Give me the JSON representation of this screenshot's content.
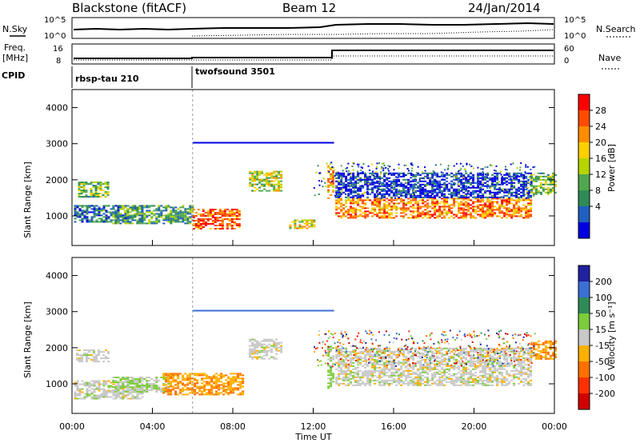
{
  "header": {
    "radar": "Blackstone (fitACF)",
    "beam": "Beam 12",
    "date": "24/Jan/2014"
  },
  "noise_panel": {
    "left_label": "N.Sky",
    "left_ticks": [
      "10^5",
      "10^0"
    ],
    "right_label": "N.Search",
    "right_ticks": [
      "10^5",
      "10^0"
    ]
  },
  "freq_panel": {
    "left_label_1": "Freq.",
    "left_label_2": "[MHz]",
    "left_ticks": [
      "16",
      "8"
    ],
    "right_label": "Nave",
    "right_ticks": [
      "60",
      "0"
    ]
  },
  "cpid_panel": {
    "label": "CPID",
    "modes": [
      {
        "name": "rbsp-tau 210",
        "start_hour": 0
      },
      {
        "name": "twofsound 3501",
        "start_hour": 6
      }
    ]
  },
  "x_axis": {
    "label": "Time UT",
    "ticks": [
      "00:00",
      "04:00",
      "08:00",
      "12:00",
      "16:00",
      "20:00",
      "00:00"
    ]
  },
  "chart_data": [
    {
      "type": "heatmap",
      "title": "",
      "xlabel": "Time UT",
      "ylabel": "Slant Range [km]",
      "xlim": [
        0,
        24
      ],
      "ylim": [
        180,
        4500
      ],
      "yticks": [
        "1000",
        "2000",
        "3000",
        "4000"
      ],
      "colorbar": {
        "label": "Power [dB]",
        "ticks": [
          "28",
          "24",
          "20",
          "16",
          "12",
          "8",
          "4"
        ],
        "colors": [
          "#ff0000",
          "#ff4a00",
          "#ff8c00",
          "#ffd000",
          "#b5d400",
          "#4fa84f",
          "#2e8b57",
          "#1f5fbf",
          "#0000e0"
        ]
      },
      "regions": [
        {
          "t0": 0.3,
          "t1": 1.8,
          "r0": 1550,
          "r1": 1950,
          "value": 14
        },
        {
          "t0": 0.1,
          "t1": 3.5,
          "r0": 850,
          "r1": 1300,
          "value": 10
        },
        {
          "t0": 2.0,
          "t1": 6.0,
          "r0": 800,
          "r1": 1300,
          "value": 12
        },
        {
          "t0": 6.0,
          "t1": 8.3,
          "r0": 650,
          "r1": 1200,
          "value": 24
        },
        {
          "t0": 8.8,
          "t1": 10.4,
          "r0": 1700,
          "r1": 2250,
          "value": 16
        },
        {
          "t0": 10.8,
          "t1": 12.0,
          "r0": 650,
          "r1": 900,
          "value": 18
        },
        {
          "t0": 12.7,
          "t1": 13.0,
          "r0": 1500,
          "r1": 2400,
          "value": 20
        },
        {
          "t0": 13.1,
          "t1": 22.8,
          "r0": 950,
          "r1": 1500,
          "value": 22
        },
        {
          "t0": 13.1,
          "t1": 22.8,
          "r0": 1500,
          "r1": 2200,
          "value": 6
        },
        {
          "t0": 22.8,
          "t1": 24.0,
          "r0": 1600,
          "r1": 2200,
          "value": 14
        }
      ]
    },
    {
      "type": "heatmap",
      "title": "",
      "xlabel": "Time UT",
      "ylabel": "Slant Range [km]",
      "xlim": [
        0,
        24
      ],
      "ylim": [
        180,
        4500
      ],
      "yticks": [
        "1000",
        "2000",
        "3000",
        "4000"
      ],
      "colorbar": {
        "label": "Velocity [m s⁻¹]",
        "ticks": [
          "200",
          "100",
          "50",
          "15",
          "-15",
          "-50",
          "-100",
          "-200"
        ],
        "colors": [
          "#2020a0",
          "#3b6fd4",
          "#2e8b57",
          "#7ccd3a",
          "#c8c8c8",
          "#ffb000",
          "#ff7000",
          "#ff3000",
          "#d00000"
        ]
      },
      "regions": [
        {
          "t0": 0.2,
          "t1": 1.8,
          "r0": 1600,
          "r1": 1950,
          "value": 0
        },
        {
          "t0": 0.1,
          "t1": 3.5,
          "r0": 600,
          "r1": 1100,
          "value": 0
        },
        {
          "t0": 2.0,
          "t1": 4.8,
          "r0": 800,
          "r1": 1200,
          "value": 30
        },
        {
          "t0": 4.5,
          "t1": 8.5,
          "r0": 700,
          "r1": 1300,
          "value": -60
        },
        {
          "t0": 8.8,
          "t1": 10.4,
          "r0": 1700,
          "r1": 2250,
          "value": 0
        },
        {
          "t0": 12.7,
          "t1": 13.0,
          "r0": 900,
          "r1": 2100,
          "value": 40
        },
        {
          "t0": 13.1,
          "t1": 22.8,
          "r0": 950,
          "r1": 2000,
          "value": 0
        },
        {
          "t0": 22.8,
          "t1": 24.0,
          "r0": 1700,
          "r1": 2200,
          "value": -60
        }
      ]
    }
  ]
}
